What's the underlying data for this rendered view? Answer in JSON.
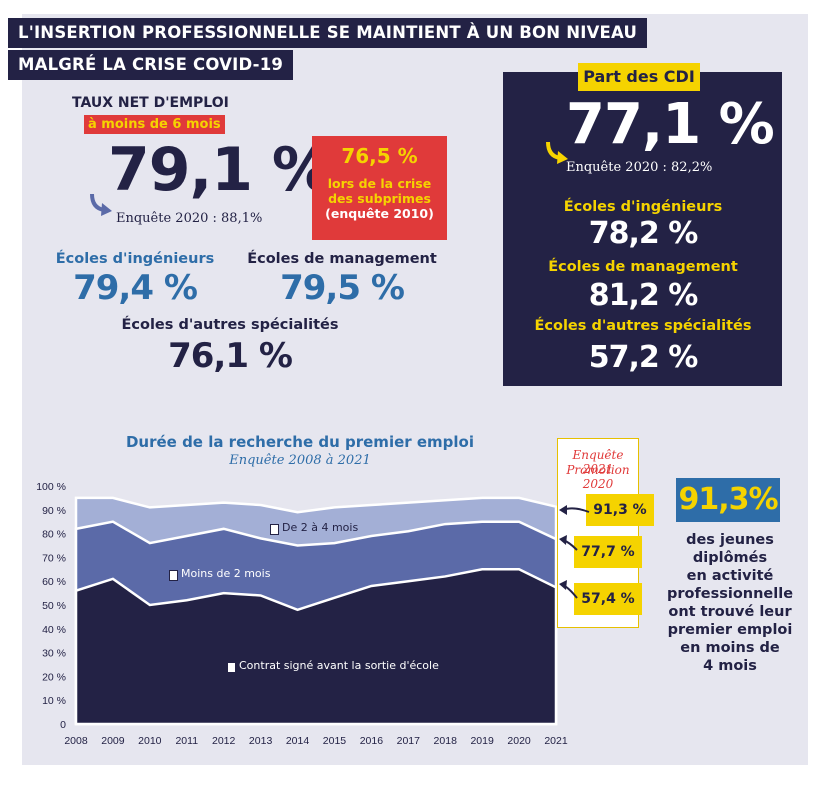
{
  "header": {
    "line1": "L'INSERTION PROFESSIONNELLE SE MAINTIENT À UN BON NIVEAU",
    "line2": "MALGRÉ LA CRISE COVID-19"
  },
  "taux": {
    "label": "TAUX NET D'EMPLOI",
    "sublabel": "à moins de 6 mois",
    "value": "79,1 %",
    "previous": "Enquête 2020 : 88,1%",
    "ingenieurs_label": "Écoles d'ingénieurs",
    "ingenieurs_value": "79,4 %",
    "management_label": "Écoles de management",
    "management_value": "79,5 %",
    "autres_label": "Écoles d'autres spécialités",
    "autres_value": "76,1 %"
  },
  "subprimes": {
    "value": "76,5 %",
    "line1": "lors de la crise",
    "line2": "des subprimes",
    "line3": "(enquête 2010)"
  },
  "cdi": {
    "tag": "Part des CDI",
    "value": "77,1 %",
    "previous": "Enquête 2020 : 82,2%",
    "ingenieurs_label": "Écoles d'ingénieurs",
    "ingenieurs_value": "78,2 %",
    "management_label": "Écoles de management",
    "management_value": "81,2 %",
    "autres_label": "Écoles d'autres spécialités",
    "autres_value": "57,2 %"
  },
  "promo": {
    "line1": "Enquête 2021",
    "line2": "Promotion 2020",
    "v1": "91,3 %",
    "v2": "77,7 %",
    "v3": "57,4 %"
  },
  "side": {
    "big": "91,3%",
    "text1": "des jeunes",
    "text2": "diplômés",
    "text3": "en activité",
    "text4": "professionnelle",
    "text5": "ont trouvé leur",
    "text6": "premier emploi",
    "text7": "en moins de",
    "text8": "4 mois"
  },
  "colors": {
    "navy": "#232245",
    "mid": "#5b6aa8",
    "light": "#a3afd6",
    "yellow": "#f5d300",
    "red": "#e03a3a",
    "blue": "#2e6da8"
  },
  "chart_data": {
    "type": "area",
    "title": "Durée de la recherche du premier emploi",
    "subtitle": "Enquête 2008 à 2021",
    "x": [
      "2008",
      "2009",
      "2010",
      "2011",
      "2012",
      "2013",
      "2014",
      "2015",
      "2016",
      "2017",
      "2018",
      "2019",
      "2020",
      "2021"
    ],
    "series": [
      {
        "name": "Contrat signé avant la sortie d'école",
        "values": [
          56,
          61,
          50,
          52,
          55,
          54,
          48,
          53,
          58,
          60,
          62,
          65,
          65,
          57.4
        ]
      },
      {
        "name": "Moins de 2 mois",
        "values": [
          82,
          85,
          76,
          79,
          82,
          78,
          75,
          76,
          79,
          81,
          84,
          85,
          85,
          77.7
        ]
      },
      {
        "name": "De 2 à 4 mois",
        "values": [
          95,
          95,
          91,
          92,
          93,
          92,
          89,
          91,
          92,
          93,
          94,
          95,
          95,
          91.3
        ]
      }
    ],
    "yticks": [
      "0",
      "10 %",
      "20 %",
      "30 %",
      "40 %",
      "50 %",
      "60 %",
      "70 %",
      "80 %",
      "90 %",
      "100 %"
    ],
    "ylim": [
      0,
      100
    ],
    "grid": false
  }
}
